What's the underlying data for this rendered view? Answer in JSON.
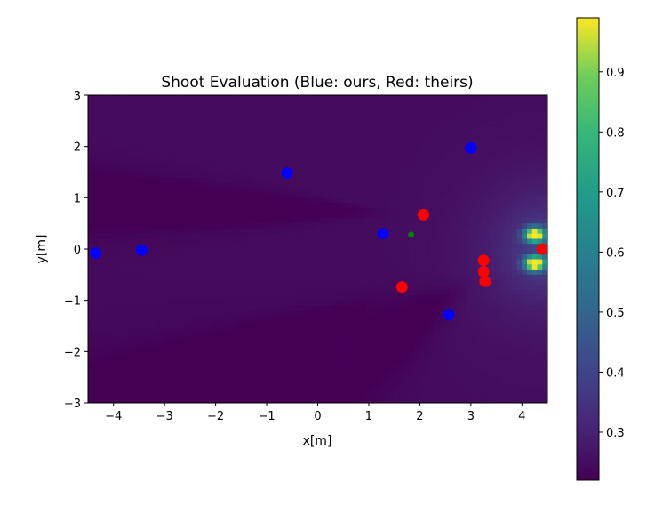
{
  "chart_data": {
    "type": "heatmap",
    "title": "Shoot Evaluation (Blue: ours, Red: theirs)",
    "xlabel": "x[m]",
    "ylabel": "y[m]",
    "xlim": [
      -4.5,
      4.5
    ],
    "ylim": [
      -3,
      3
    ],
    "grid": false,
    "x_ticks": [
      -4,
      -3,
      -2,
      -1,
      0,
      1,
      2,
      3,
      4
    ],
    "x_tick_labels": [
      "−4",
      "−3",
      "−2",
      "−1",
      "0",
      "1",
      "2",
      "3",
      "4"
    ],
    "y_ticks": [
      -3,
      -2,
      -1,
      0,
      1,
      2,
      3
    ],
    "y_tick_labels": [
      "−3",
      "−2",
      "−1",
      "0",
      "1",
      "2",
      "3"
    ],
    "colormap": "viridis",
    "colorbar": {
      "range": [
        0.22,
        0.99
      ],
      "ticks": [
        0.3,
        0.4,
        0.5,
        0.6,
        0.7,
        0.8,
        0.9
      ],
      "tick_labels": [
        "0.3",
        "0.4",
        "0.5",
        "0.6",
        "0.7",
        "0.8",
        "0.9"
      ]
    },
    "series": [
      {
        "color": "#0000ff",
        "points": [
          {
            "x": -4.35,
            "y": -0.08
          },
          {
            "x": -3.45,
            "y": -0.02
          },
          {
            "x": -0.6,
            "y": 1.48
          },
          {
            "x": 1.28,
            "y": 0.3
          },
          {
            "x": 3.0,
            "y": 1.97
          },
          {
            "x": 2.57,
            "y": -1.28
          }
        ]
      },
      {
        "color": "#ff0000",
        "points": [
          {
            "x": 2.07,
            "y": 0.67
          },
          {
            "x": 1.65,
            "y": -0.74
          },
          {
            "x": 3.25,
            "y": -0.22
          },
          {
            "x": 3.25,
            "y": -0.44
          },
          {
            "x": 3.28,
            "y": -0.63
          },
          {
            "x": 4.4,
            "y": 0.0
          }
        ]
      },
      {
        "color": "#008000",
        "points": [
          {
            "x": 1.83,
            "y": 0.28
          }
        ]
      }
    ]
  }
}
